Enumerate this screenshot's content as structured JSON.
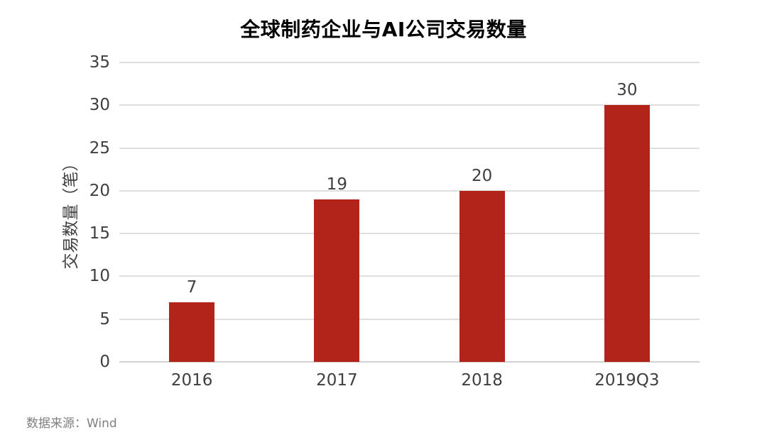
{
  "title": "全球制药企业与AI公司交易数量",
  "source_note": "数据来源：Wind",
  "colors": {
    "bar": "#b2231a",
    "gridline": "#dedede",
    "baseline": "#d2d2d2",
    "tick_text": "#3f3f3f",
    "title_text": "#000000",
    "source_text": "#7f7f7f",
    "background": "#ffffff"
  },
  "chart_data": {
    "type": "bar",
    "categories": [
      "2016",
      "2017",
      "2018",
      "2019Q3"
    ],
    "values": [
      7,
      19,
      20,
      30
    ],
    "title": "全球制药企业与AI公司交易数量",
    "xlabel": "",
    "ylabel": "交易数量（笔）",
    "ylim": [
      0,
      35
    ],
    "ytick_step": 5,
    "yticks": [
      0,
      5,
      10,
      15,
      20,
      25,
      30,
      35
    ],
    "grid": true,
    "legend": "none",
    "bar_color": "#b2231a",
    "source": "数据来源：Wind"
  }
}
